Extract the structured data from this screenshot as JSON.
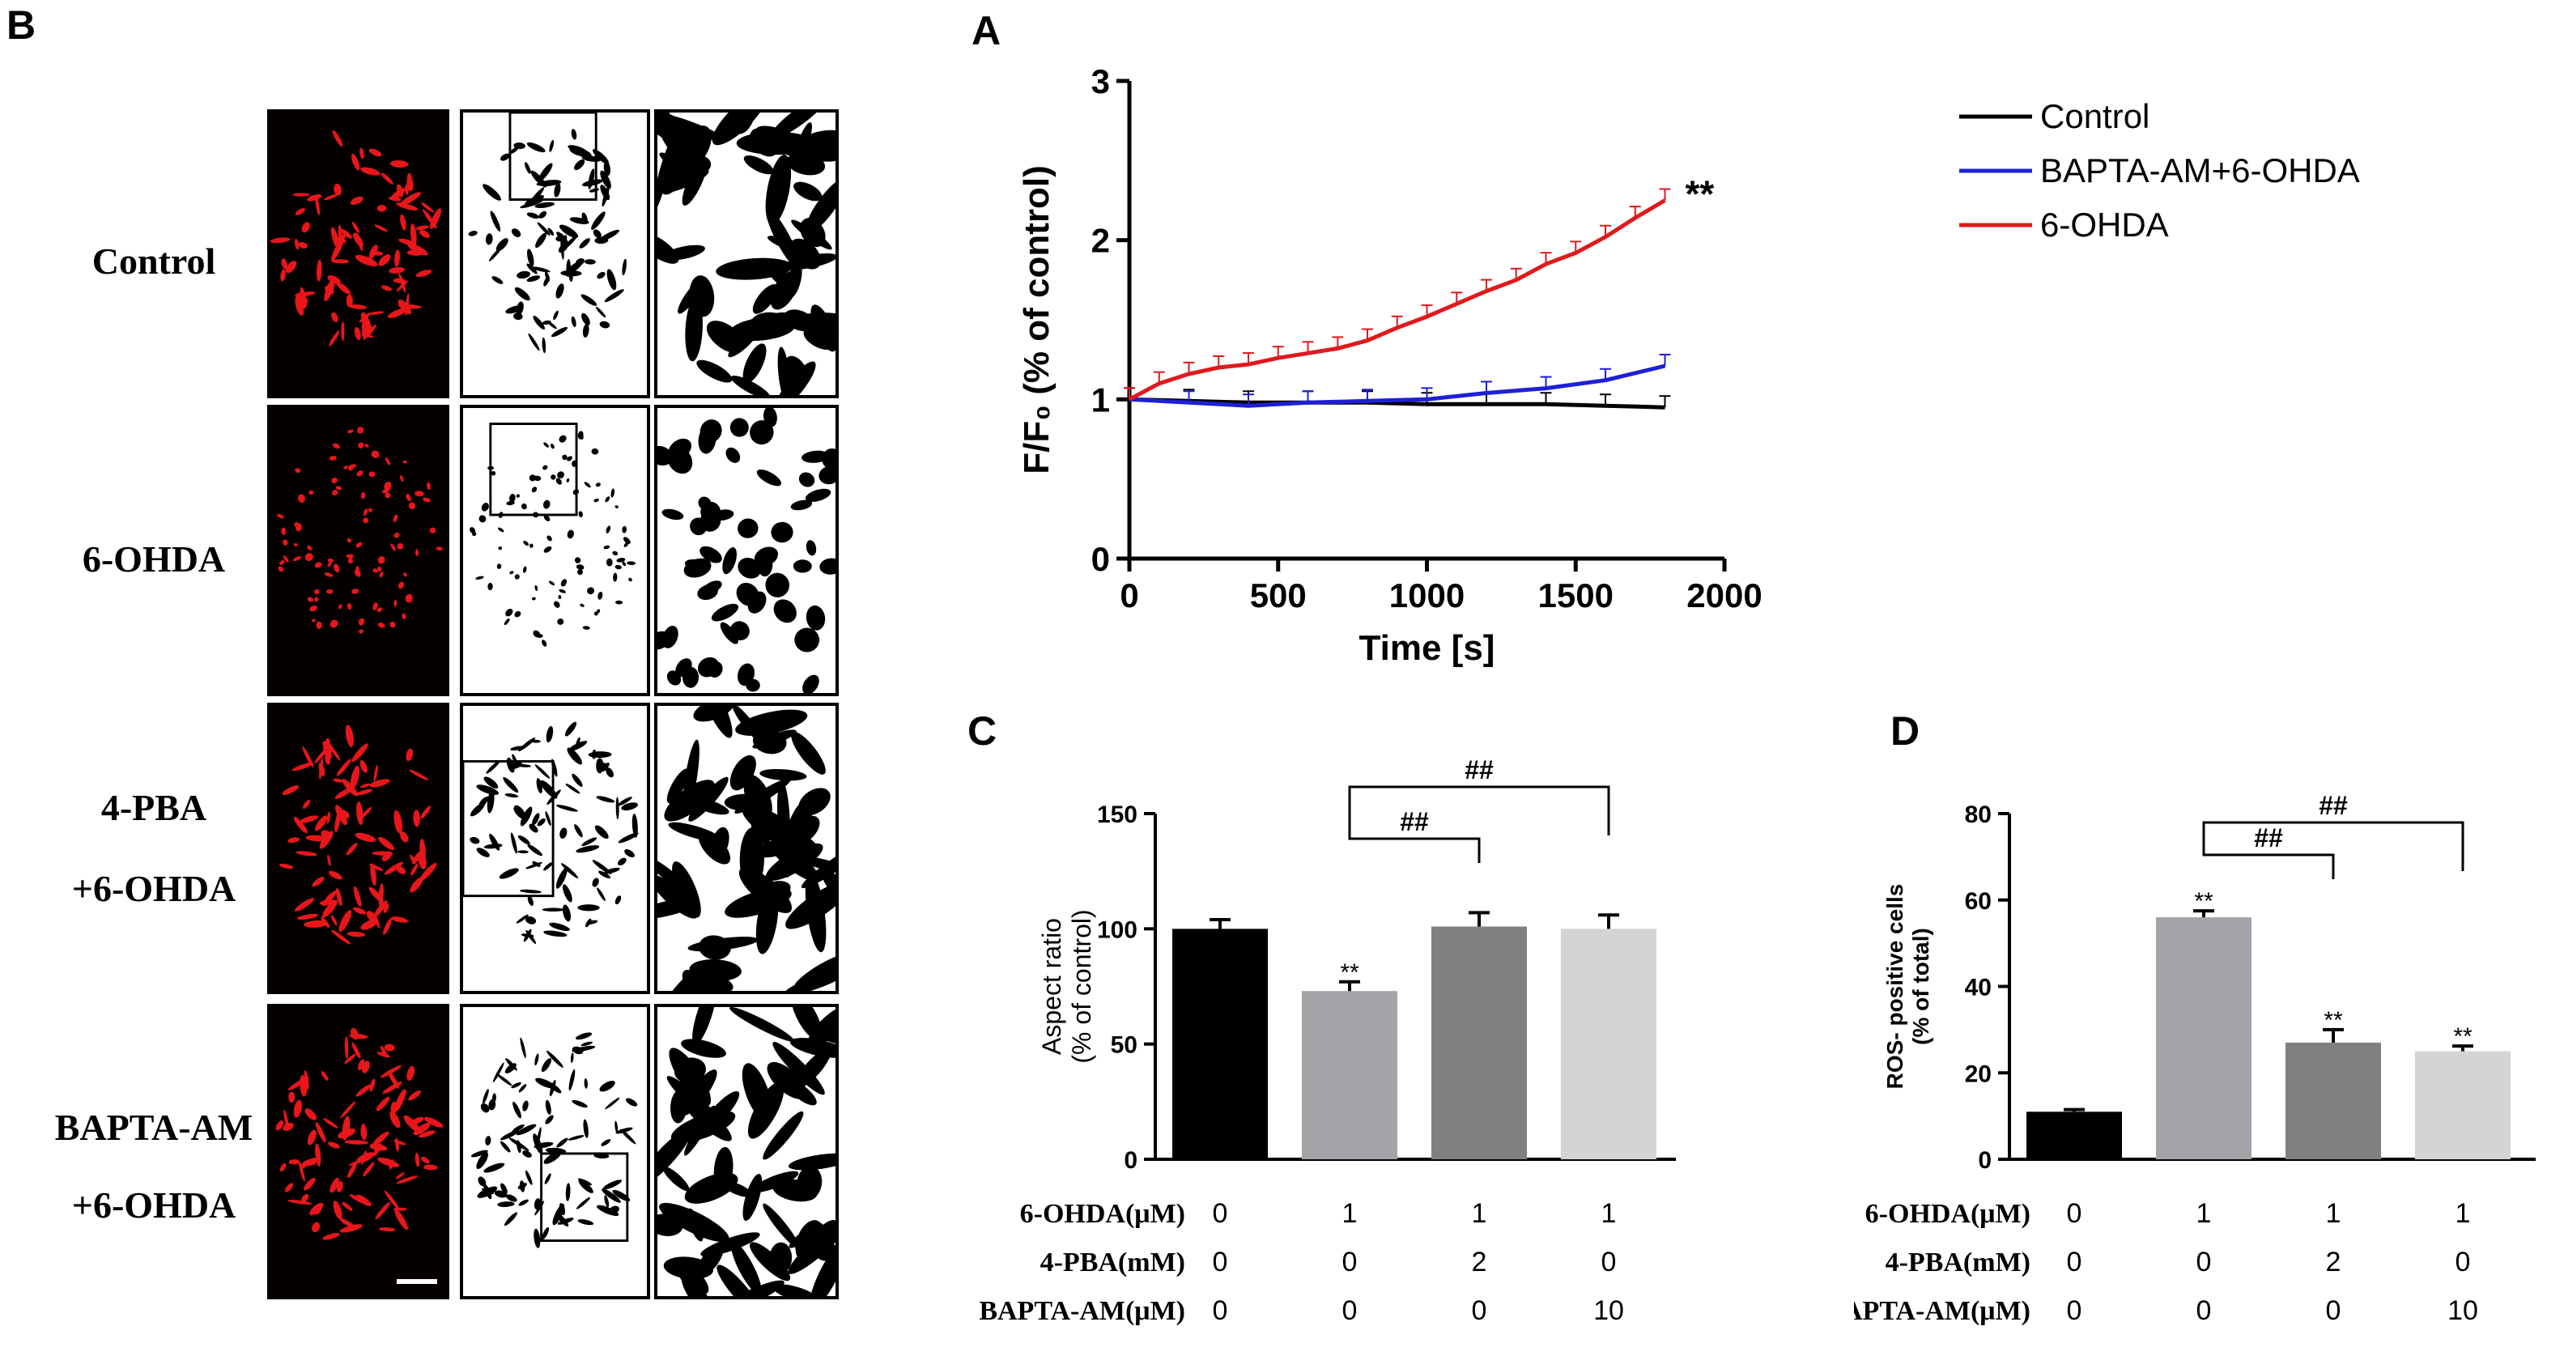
{
  "panel_b": {
    "letter": "B",
    "rows": [
      {
        "label_lines": [
          "Control"
        ]
      },
      {
        "label_lines": [
          "6-OHDA"
        ]
      },
      {
        "label_lines": [
          "4-PBA",
          "+6-OHDA"
        ]
      },
      {
        "label_lines": [
          "BAPTA-AM",
          "+6-OHDA"
        ]
      }
    ]
  },
  "chart_data": [
    {
      "panel": "A",
      "type": "line",
      "title": "",
      "xlabel": "Time [s]",
      "ylabel": "F/F₀ (% of control)",
      "xlim": [
        0,
        2000
      ],
      "ylim": [
        0,
        3
      ],
      "xticks": [
        "0",
        "500",
        "1000",
        "1500",
        "2000"
      ],
      "yticks": [
        "0",
        "1",
        "2",
        "3"
      ],
      "legend_position": "top-right",
      "significance": "**",
      "series": [
        {
          "name": "Control",
          "color": "#000000",
          "x": [
            0,
            200,
            400,
            600,
            800,
            1000,
            1200,
            1400,
            1600,
            1800
          ],
          "y": [
            1.0,
            0.99,
            0.98,
            0.98,
            0.98,
            0.97,
            0.97,
            0.97,
            0.96,
            0.95
          ]
        },
        {
          "name": "BAPTA-AM+6-OHDA",
          "color": "#1f1fd6",
          "x": [
            0,
            200,
            400,
            600,
            800,
            1000,
            1200,
            1400,
            1600,
            1800
          ],
          "y": [
            1.0,
            0.98,
            0.96,
            0.98,
            0.99,
            1.0,
            1.04,
            1.07,
            1.12,
            1.21
          ]
        },
        {
          "name": "6-OHDA",
          "color": "#e0191d",
          "x": [
            0,
            100,
            200,
            300,
            400,
            500,
            600,
            700,
            800,
            900,
            1000,
            1100,
            1200,
            1300,
            1400,
            1500,
            1600,
            1700,
            1800
          ],
          "y": [
            1.0,
            1.1,
            1.16,
            1.2,
            1.22,
            1.26,
            1.29,
            1.32,
            1.37,
            1.45,
            1.52,
            1.6,
            1.68,
            1.75,
            1.85,
            1.92,
            2.02,
            2.14,
            2.25
          ]
        }
      ]
    },
    {
      "panel": "C",
      "type": "bar",
      "ylabel": "Aspect ratio (% of control)",
      "ylabel_lines": [
        "Aspect ratio",
        "(% of control)"
      ],
      "ylim": [
        0,
        150
      ],
      "yticks": [
        "0",
        "50",
        "100",
        "150"
      ],
      "categories": [
        "Control",
        "6-OHDA",
        "4-PBA+6-OHDA",
        "BAPTA-AM+6-OHDA"
      ],
      "values": [
        100,
        73,
        101,
        100
      ],
      "errors": [
        4,
        4,
        6,
        6
      ],
      "colors": [
        "#000000",
        "#a3a3a8",
        "#808080",
        "#d4d4d4"
      ],
      "bar_labels": [
        "",
        "**",
        "",
        ""
      ],
      "brackets": [
        {
          "from": 1,
          "to": 2,
          "label": "##"
        },
        {
          "from": 1,
          "to": 3,
          "label": "##"
        }
      ]
    },
    {
      "panel": "D",
      "type": "bar",
      "ylabel": "ROS- positive cells (% of total)",
      "ylabel_lines": [
        "ROS- positive cells",
        "(% of total)"
      ],
      "ylim": [
        0,
        80
      ],
      "yticks": [
        "0",
        "20",
        "40",
        "60",
        "80"
      ],
      "categories": [
        "Control",
        "6-OHDA",
        "4-PBA+6-OHDA",
        "BAPTA-AM+6-OHDA"
      ],
      "values": [
        11,
        56,
        27,
        25
      ],
      "errors": [
        0.5,
        1.5,
        3,
        1.2
      ],
      "colors": [
        "#000000",
        "#a3a3a8",
        "#808080",
        "#d4d4d4"
      ],
      "bar_labels": [
        "",
        "**",
        "**",
        "**"
      ],
      "brackets": [
        {
          "from": 1,
          "to": 2,
          "label": "##"
        },
        {
          "from": 1,
          "to": 3,
          "label": "##"
        }
      ]
    }
  ],
  "conditions": {
    "rows": [
      {
        "label": "6-OHDA(μM)",
        "values": [
          "0",
          "1",
          "1",
          "1"
        ]
      },
      {
        "label": "4-PBA(mM)",
        "values": [
          "0",
          "0",
          "2",
          "0"
        ]
      },
      {
        "label": "BAPTA-AM(μM)",
        "values": [
          "0",
          "0",
          "0",
          "10"
        ]
      }
    ]
  }
}
